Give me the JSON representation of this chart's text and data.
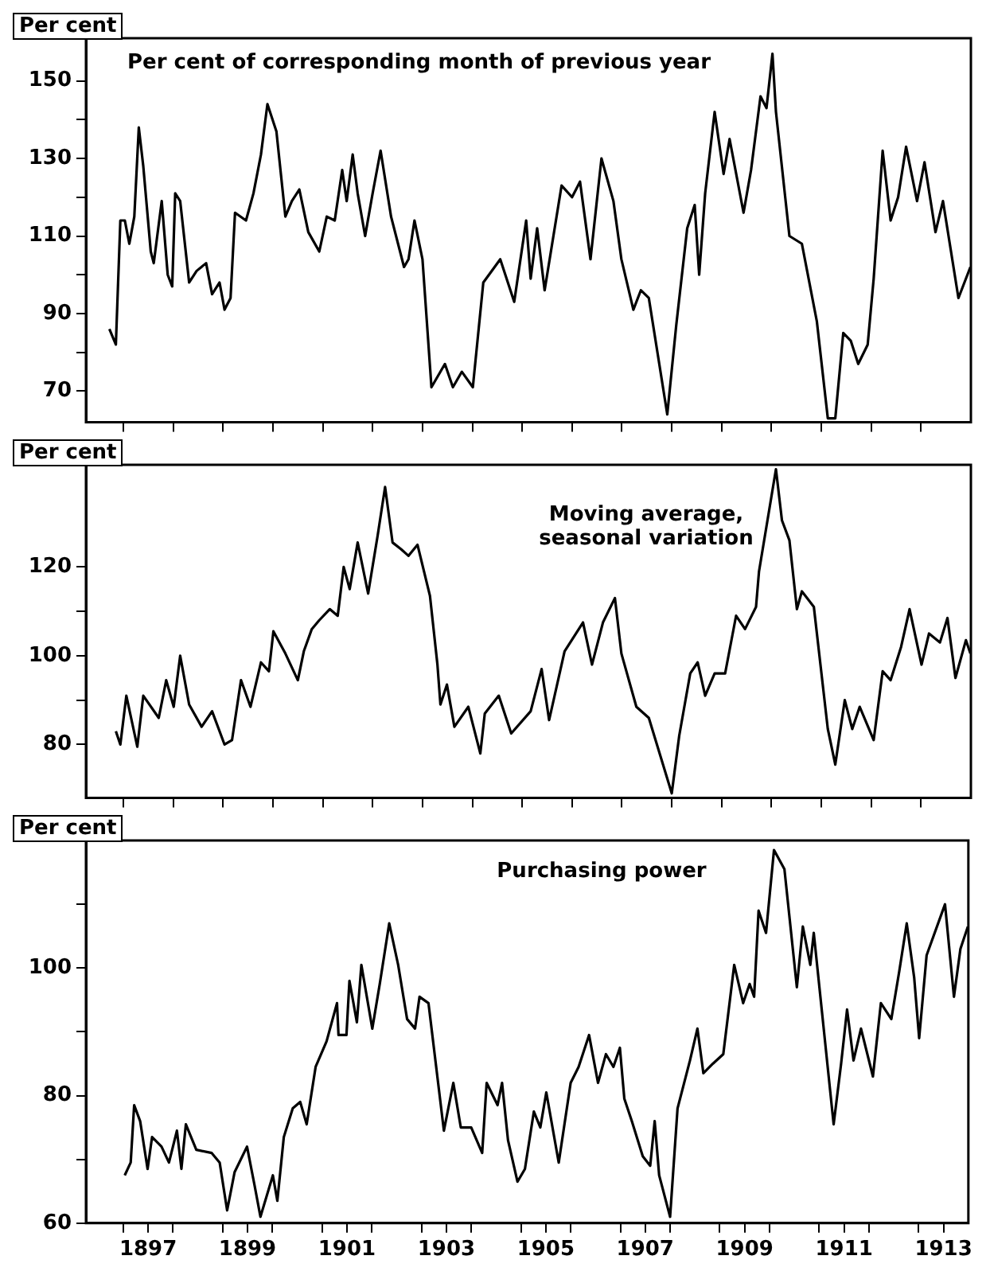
{
  "chart_data": [
    {
      "type": "line",
      "title": "Per cent of corresponding month of previous year",
      "ylabel": "Per cent",
      "xlim": [
        1896.25,
        1914
      ],
      "xticks": [
        {
          "value": 1897,
          "label": null
        },
        {
          "value": 1898,
          "label": null
        },
        {
          "value": 1899,
          "label": null
        },
        {
          "value": 1900,
          "label": null
        },
        {
          "value": 1901,
          "label": null
        },
        {
          "value": 1902,
          "label": null
        },
        {
          "value": 1903,
          "label": null
        },
        {
          "value": 1904,
          "label": null
        },
        {
          "value": 1905,
          "label": null
        },
        {
          "value": 1906,
          "label": null
        },
        {
          "value": 1907,
          "label": null
        },
        {
          "value": 1908,
          "label": null
        },
        {
          "value": 1909,
          "label": null
        },
        {
          "value": 1910,
          "label": null
        },
        {
          "value": 1911,
          "label": null
        },
        {
          "value": 1912,
          "label": null
        },
        {
          "value": 1913,
          "label": null
        }
      ],
      "ylim": [
        62,
        161
      ],
      "yticks": [
        70,
        {
          "value": 80,
          "label": null
        },
        90,
        {
          "value": 100,
          "label": null
        },
        110,
        {
          "value": 120,
          "label": null
        },
        130,
        {
          "value": 140,
          "label": null
        },
        150
      ],
      "tick_labels": "y",
      "grid": false,
      "legend": false,
      "marker": "none",
      "line_style": "solid",
      "series": [
        {
          "color": "#000000",
          "x": [
            1896.72,
            1896.85,
            1896.94,
            1897.03,
            1897.12,
            1897.22,
            1897.31,
            1897.4,
            1897.55,
            1897.61,
            1897.77,
            1897.89,
            1897.98,
            1898.04,
            1898.14,
            1898.32,
            1898.47,
            1898.66,
            1898.78,
            1898.93,
            1899.03,
            1899.15,
            1899.24,
            1899.46,
            1899.61,
            1899.76,
            1899.89,
            1900.07,
            1900.25,
            1900.38,
            1900.53,
            1900.71,
            1900.93,
            1901.08,
            1901.24,
            1901.39,
            1901.48,
            1901.6,
            1901.7,
            1901.85,
            1902.0,
            1902.16,
            1902.37,
            1902.63,
            1902.72,
            1902.84,
            1903.0,
            1903.18,
            1903.45,
            1903.61,
            1903.79,
            1904.01,
            1904.22,
            1904.56,
            1904.84,
            1905.08,
            1905.17,
            1905.3,
            1905.45,
            1905.79,
            1906.0,
            1906.16,
            1906.37,
            1906.59,
            1906.83,
            1906.99,
            1907.23,
            1907.38,
            1907.54,
            1907.91,
            1908.09,
            1908.31,
            1908.46,
            1908.55,
            1908.67,
            1908.86,
            1909.04,
            1909.16,
            1909.44,
            1909.59,
            1909.78,
            1909.9,
            1910.02,
            1910.09,
            1910.36,
            1910.61,
            1910.91,
            1911.13,
            1911.28,
            1911.44,
            1911.59,
            1911.74,
            1911.93,
            1912.05,
            1912.23,
            1912.39,
            1912.54,
            1912.7,
            1912.92,
            1913.07,
            1913.29,
            1913.44,
            1913.75,
            1913.99
          ],
          "values": [
            86,
            82,
            114,
            114,
            108,
            115,
            138,
            128,
            106,
            103,
            119,
            100,
            97,
            121,
            119,
            98,
            101,
            103,
            95,
            98,
            91,
            94,
            116,
            114,
            121,
            131,
            144,
            137,
            115,
            119,
            122,
            111,
            106,
            115,
            114,
            127,
            119,
            131,
            121,
            110,
            121,
            132,
            115,
            102,
            104,
            114,
            104,
            71,
            77,
            71,
            75,
            71,
            98,
            104,
            93,
            114,
            99,
            112,
            96,
            123,
            120,
            124,
            104,
            130,
            119,
            104,
            91,
            96,
            94,
            64,
            87,
            112,
            118,
            100,
            121,
            142,
            126,
            135,
            116,
            127,
            146,
            143,
            157,
            142,
            110,
            108,
            88,
            63,
            63,
            85,
            83,
            77,
            82,
            99,
            132,
            114,
            120,
            133,
            119,
            129,
            111,
            119,
            94,
            102
          ]
        }
      ]
    },
    {
      "type": "line",
      "title": "Moving average, seasonal variation",
      "ylabel": "Per cent",
      "xlim": [
        1896.25,
        1914
      ],
      "xticks": [
        {
          "value": 1897,
          "label": null
        },
        {
          "value": 1898,
          "label": null
        },
        {
          "value": 1899,
          "label": null
        },
        {
          "value": 1900,
          "label": null
        },
        {
          "value": 1901,
          "label": null
        },
        {
          "value": 1902,
          "label": null
        },
        {
          "value": 1903,
          "label": null
        },
        {
          "value": 1904,
          "label": null
        },
        {
          "value": 1905,
          "label": null
        },
        {
          "value": 1906,
          "label": null
        },
        {
          "value": 1907,
          "label": null
        },
        {
          "value": 1908,
          "label": null
        },
        {
          "value": 1909,
          "label": null
        },
        {
          "value": 1910,
          "label": null
        },
        {
          "value": 1911,
          "label": null
        },
        {
          "value": 1912,
          "label": null
        },
        {
          "value": 1913,
          "label": null
        }
      ],
      "ylim": [
        68,
        143
      ],
      "yticks": [
        80,
        {
          "value": 90,
          "label": null
        },
        100,
        {
          "value": 110,
          "label": null
        },
        120
      ],
      "tick_labels": "y",
      "grid": false,
      "legend": false,
      "marker": "none",
      "line_style": "solid",
      "series": [
        {
          "color": "#000000",
          "x": [
            1896.85,
            1896.94,
            1897.06,
            1897.28,
            1897.4,
            1897.71,
            1897.86,
            1898.01,
            1898.14,
            1898.32,
            1898.57,
            1898.78,
            1899.03,
            1899.18,
            1899.36,
            1899.55,
            1899.76,
            1899.92,
            1900.01,
            1900.25,
            1900.5,
            1900.62,
            1900.78,
            1900.93,
            1901.14,
            1901.3,
            1901.42,
            1901.54,
            1901.7,
            1901.91,
            1902.1,
            1902.25,
            1902.4,
            1902.57,
            1902.72,
            1902.9,
            1903.15,
            1903.3,
            1903.36,
            1903.49,
            1903.64,
            1903.92,
            1904.16,
            1904.25,
            1904.53,
            1904.78,
            1905.17,
            1905.39,
            1905.54,
            1905.85,
            1906.22,
            1906.4,
            1906.62,
            1906.86,
            1906.99,
            1907.29,
            1907.54,
            1908.0,
            1908.15,
            1908.37,
            1908.52,
            1908.67,
            1908.86,
            1909.07,
            1909.29,
            1909.47,
            1909.69,
            1909.75,
            1910.09,
            1910.21,
            1910.36,
            1910.51,
            1910.61,
            1910.85,
            1911.13,
            1911.28,
            1911.47,
            1911.62,
            1911.77,
            1912.05,
            1912.23,
            1912.39,
            1912.6,
            1912.77,
            1913.01,
            1913.16,
            1913.38,
            1913.53,
            1913.69,
            1913.9,
            1913.99
          ],
          "values": [
            83,
            80,
            91,
            79.5,
            91,
            86,
            94.5,
            88.5,
            100,
            89,
            84,
            87.5,
            80,
            81,
            94.5,
            88.5,
            98.5,
            96.5,
            105.5,
            100.5,
            94.5,
            101,
            106,
            108,
            110.5,
            109,
            120,
            115,
            125.5,
            114,
            127,
            138,
            125.5,
            124,
            122.5,
            125,
            113.5,
            98,
            89,
            93.5,
            84,
            88.5,
            78,
            87,
            91,
            82.5,
            87.5,
            97,
            85.5,
            101,
            107.5,
            98,
            107.5,
            113,
            100.5,
            88.5,
            86,
            69,
            82,
            96,
            98.5,
            91,
            96,
            96,
            109,
            106,
            111,
            119,
            142,
            130.5,
            126,
            110.5,
            114.5,
            111,
            83.5,
            75.5,
            90,
            83.5,
            88.5,
            81,
            96.5,
            94.5,
            102,
            110.5,
            98,
            105,
            103,
            108.5,
            95,
            103.5,
            100.5
          ]
        }
      ]
    },
    {
      "type": "line",
      "title": "Purchasing power",
      "ylabel": "Per cent",
      "xlim": [
        1896.25,
        1914
      ],
      "xticks": [
        {
          "value": 1897,
          "label": null
        },
        {
          "value": 1897.5,
          "label": "1897"
        },
        {
          "value": 1898,
          "label": null
        },
        {
          "value": 1899,
          "label": null
        },
        {
          "value": 1899.5,
          "label": "1899"
        },
        {
          "value": 1900,
          "label": null
        },
        {
          "value": 1901,
          "label": null
        },
        {
          "value": 1901.5,
          "label": "1901"
        },
        {
          "value": 1902,
          "label": null
        },
        {
          "value": 1903,
          "label": null
        },
        {
          "value": 1903.5,
          "label": "1903"
        },
        {
          "value": 1904,
          "label": null
        },
        {
          "value": 1905,
          "label": null
        },
        {
          "value": 1905.5,
          "label": "1905"
        },
        {
          "value": 1906,
          "label": null
        },
        {
          "value": 1907,
          "label": null
        },
        {
          "value": 1907.5,
          "label": "1907"
        },
        {
          "value": 1908,
          "label": null
        },
        {
          "value": 1909,
          "label": null
        },
        {
          "value": 1909.5,
          "label": "1909"
        },
        {
          "value": 1910,
          "label": null
        },
        {
          "value": 1911,
          "label": null
        },
        {
          "value": 1911.5,
          "label": "1911"
        },
        {
          "value": 1912,
          "label": null
        },
        {
          "value": 1913,
          "label": null
        },
        {
          "value": 1913.5,
          "label": "1913"
        }
      ],
      "ylim": [
        60,
        120
      ],
      "yticks": [
        60,
        {
          "value": 70,
          "label": null
        },
        80,
        {
          "value": 90,
          "label": null
        },
        100,
        {
          "value": 110,
          "label": null
        }
      ],
      "grid": false,
      "legend": false,
      "marker": "none",
      "line_style": "solid",
      "series": [
        {
          "color": "#000000",
          "x": [
            1897.03,
            1897.15,
            1897.22,
            1897.34,
            1897.49,
            1897.58,
            1897.77,
            1897.92,
            1898.08,
            1898.17,
            1898.26,
            1898.47,
            1898.78,
            1898.94,
            1899.09,
            1899.24,
            1899.49,
            1899.64,
            1899.76,
            1900.01,
            1900.1,
            1900.23,
            1900.41,
            1900.56,
            1900.69,
            1900.78,
            1900.87,
            1901.09,
            1901.3,
            1901.33,
            1901.49,
            1901.55,
            1901.7,
            1901.79,
            1902.01,
            1902.16,
            1902.35,
            1902.53,
            1902.71,
            1902.87,
            1902.96,
            1903.14,
            1903.45,
            1903.64,
            1903.79,
            1904.0,
            1904.22,
            1904.31,
            1904.53,
            1904.62,
            1904.74,
            1904.93,
            1905.08,
            1905.26,
            1905.39,
            1905.51,
            1905.76,
            1906.0,
            1906.16,
            1906.37,
            1906.55,
            1906.71,
            1906.86,
            1906.99,
            1907.08,
            1907.23,
            1907.45,
            1907.6,
            1907.69,
            1907.78,
            1908.0,
            1908.15,
            1908.4,
            1908.55,
            1908.67,
            1908.86,
            1909.07,
            1909.29,
            1909.47,
            1909.6,
            1909.69,
            1909.78,
            1909.93,
            1910.09,
            1910.3,
            1910.55,
            1910.67,
            1910.82,
            1910.89,
            1911.29,
            1911.44,
            1911.56,
            1911.69,
            1911.84,
            1912.08,
            1912.24,
            1912.45,
            1912.61,
            1912.76,
            1912.91,
            1913.01,
            1913.16,
            1913.53,
            1913.71,
            1913.84,
            1913.99
          ],
          "values": [
            67.5,
            69.5,
            78.5,
            76,
            68.5,
            73.5,
            72,
            69.5,
            74.5,
            68.5,
            75.5,
            71.5,
            71,
            69.5,
            62,
            68,
            72,
            66,
            61,
            67.5,
            63.5,
            73.5,
            78,
            79,
            75.5,
            80,
            84.5,
            88.5,
            94.5,
            89.5,
            89.5,
            98,
            91.5,
            100.5,
            90.5,
            97.5,
            107,
            100.5,
            92,
            90.5,
            95.5,
            94.5,
            74.5,
            82,
            75,
            75,
            71,
            82,
            78.5,
            82,
            73,
            66.5,
            68.5,
            77.5,
            75,
            80.5,
            69.5,
            82,
            84.5,
            89.5,
            82,
            86.5,
            84.5,
            87.5,
            79.5,
            76,
            70.5,
            69,
            76,
            67.5,
            61,
            78,
            85.5,
            90.5,
            83.5,
            85,
            86.5,
            100.5,
            94.5,
            97.5,
            95.5,
            109,
            105.5,
            118.5,
            115.5,
            97,
            106.5,
            100.5,
            105.5,
            75.5,
            85,
            93.5,
            85.5,
            90.5,
            83,
            94.5,
            92,
            99.5,
            107,
            98.5,
            89,
            102,
            110,
            95.5,
            103,
            106.5
          ]
        }
      ]
    }
  ]
}
